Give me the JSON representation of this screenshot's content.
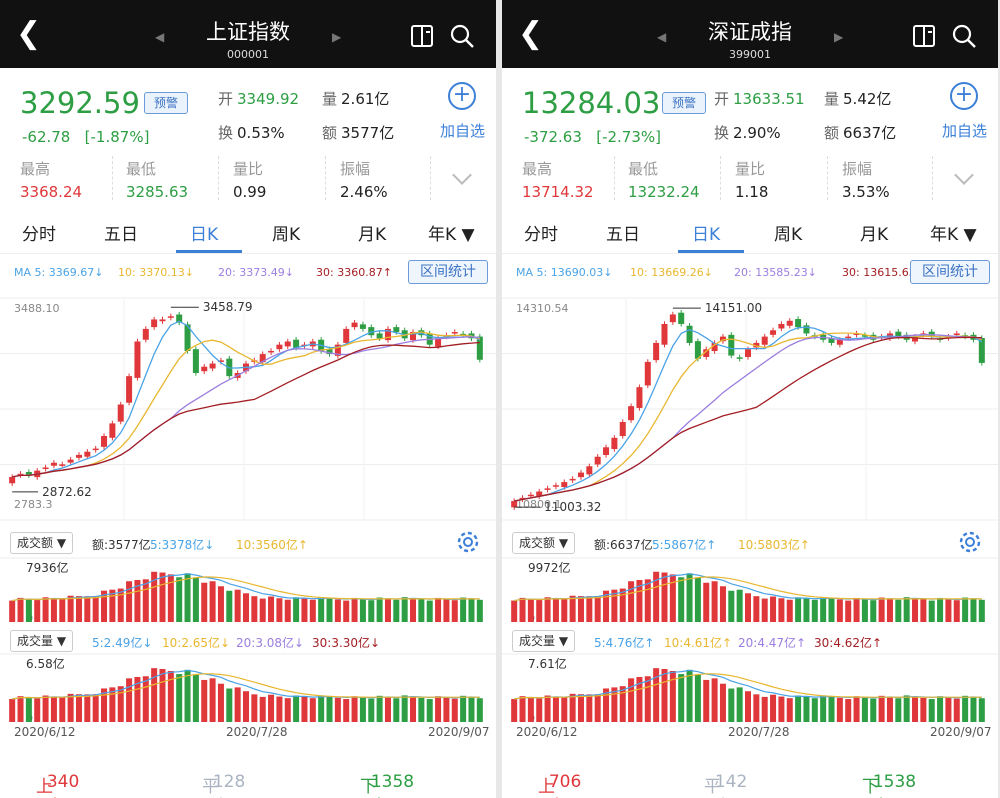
{
  "colors": {
    "up": "#e0373a",
    "down": "#2d9e43",
    "flat": "#aab4c2",
    "accent": "#3c80d8",
    "ma5": "#4aa3e6",
    "ma10": "#e8b730",
    "ma20": "#9b7ee0",
    "ma30": "#a31e23"
  },
  "panels": [
    {
      "header": {
        "title": "上证指数",
        "code": "000001",
        "back_icon": "back-chevron",
        "compare_icon": "layout-icon",
        "search_icon": "search-icon"
      },
      "quote": {
        "price": "3292.59",
        "alert_label": "预警",
        "change": "-62.78",
        "change_pct": "[-1.87%]",
        "open_label": "开",
        "open": "3349.92",
        "volume_label": "量",
        "volume": "2.61亿",
        "turnover_label": "换",
        "turnover": "0.53%",
        "amount_label": "额",
        "amount": "3577亿",
        "add_label": "加自选",
        "stats": [
          {
            "label": "最高",
            "value": "3368.24",
            "color": "up"
          },
          {
            "label": "最低",
            "value": "3285.63",
            "color": "down"
          },
          {
            "label": "量比",
            "value": "0.99",
            "color": "plain"
          },
          {
            "label": "振幅",
            "value": "2.46%",
            "color": "plain"
          }
        ]
      },
      "tabs": [
        "分时",
        "五日",
        "日K",
        "周K",
        "月K",
        "年K"
      ],
      "active_tab": 2,
      "ma_legend": [
        "MA 5: 3369.67↓",
        "10: 3370.13↓",
        "20: 3373.49↓",
        "30: 3360.87↑"
      ],
      "range_button": "区间统计",
      "price_axis": {
        "high_label": "3488.10",
        "low_label": "2783.3",
        "max_mark": "3458.79",
        "min_mark": "2872.62"
      },
      "amount_panel": {
        "dropdown": "成交额",
        "legend": [
          "额:3577亿",
          "5:3378亿↓",
          "10:3560亿↑"
        ],
        "max_label": "7936亿",
        "zero": "0"
      },
      "volume_panel": {
        "dropdown": "成交量",
        "legend": [
          "5:2.49亿↓",
          "10:2.65亿↓",
          "20:3.08亿↓",
          "30:3.30亿↓"
        ],
        "max_label": "6.58亿",
        "zero": "0"
      },
      "dates": [
        "2020/6/12",
        "2020/7/28",
        "2020/9/07"
      ],
      "footer": {
        "up_label": "上涨",
        "up": "340家",
        "flat_label": "平盘",
        "flat": "128家",
        "down_label": "下跌",
        "down": "1358家"
      }
    },
    {
      "header": {
        "title": "深证成指",
        "code": "399001",
        "back_icon": "back-chevron",
        "compare_icon": "layout-icon",
        "search_icon": "search-icon"
      },
      "quote": {
        "price": "13284.03",
        "alert_label": "预警",
        "change": "-372.63",
        "change_pct": "[-2.73%]",
        "open_label": "开",
        "open": "13633.51",
        "volume_label": "量",
        "volume": "5.42亿",
        "turnover_label": "换",
        "turnover": "2.90%",
        "amount_label": "额",
        "amount": "6637亿",
        "add_label": "加自选",
        "stats": [
          {
            "label": "最高",
            "value": "13714.32",
            "color": "up"
          },
          {
            "label": "最低",
            "value": "13232.24",
            "color": "down"
          },
          {
            "label": "量比",
            "value": "1.18",
            "color": "plain"
          },
          {
            "label": "振幅",
            "value": "3.53%",
            "color": "plain"
          }
        ]
      },
      "tabs": [
        "分时",
        "五日",
        "日K",
        "周K",
        "月K",
        "年K"
      ],
      "active_tab": 2,
      "ma_legend": [
        "MA 5: 13690.03↓",
        "10: 13669.26↓",
        "20: 13585.23↓",
        "30: 13615.63↑"
      ],
      "range_button": "区间统计",
      "price_axis": {
        "high_label": "14310.54",
        "low_label": "10800.1",
        "max_mark": "14151.00",
        "min_mark": "11003.32"
      },
      "amount_panel": {
        "dropdown": "成交额",
        "legend": [
          "额:6637亿",
          "5:5867亿↑",
          "10:5803亿↑"
        ],
        "max_label": "9972亿",
        "zero": "0"
      },
      "volume_panel": {
        "dropdown": "成交量",
        "legend": [
          "5:4.76亿↑",
          "10:4.61亿↑",
          "20:4.47亿↑",
          "30:4.62亿↑"
        ],
        "max_label": "7.61亿",
        "zero": "0"
      },
      "dates": [
        "2020/6/12",
        "2020/7/28",
        "2020/9/07"
      ],
      "footer": {
        "up_label": "上涨",
        "up": "706家",
        "flat_label": "平盘",
        "flat": "142家",
        "down_label": "下跌",
        "down": "1538家"
      }
    }
  ],
  "chart_data": [
    {
      "type": "candlestick",
      "title": "上证指数 日K",
      "x_range": [
        "2020/6/12",
        "2020/9/07"
      ],
      "closes": [
        2920,
        2930,
        2925,
        2940,
        2950,
        2965,
        2960,
        2975,
        2990,
        3000,
        3010,
        3050,
        3090,
        3150,
        3240,
        3350,
        3390,
        3420,
        3420,
        3430,
        3410,
        3320,
        3250,
        3270,
        3280,
        3290,
        3240,
        3250,
        3280,
        3290,
        3310,
        3320,
        3340,
        3350,
        3330,
        3340,
        3350,
        3320,
        3310,
        3340,
        3390,
        3410,
        3390,
        3370,
        3360,
        3390,
        3380,
        3360,
        3380,
        3370,
        3340,
        3360,
        3370,
        3380,
        3370,
        3360,
        3292
      ],
      "high": 3458.79,
      "low": 2872.62,
      "ylim": [
        2783.3,
        3488.1
      ],
      "ma": {
        "ma5": 3369.67,
        "ma10": 3370.13,
        "ma20": 3373.49,
        "ma30": 3360.87
      },
      "amount_max": "7936亿",
      "volume_max": "6.58亿"
    },
    {
      "type": "candlestick",
      "title": "深证成指 日K",
      "x_range": [
        "2020/6/12",
        "2020/9/07"
      ],
      "closes": [
        11100,
        11150,
        11200,
        11250,
        11300,
        11350,
        11400,
        11450,
        11550,
        11650,
        11800,
        11950,
        12100,
        12350,
        12600,
        12900,
        13300,
        13600,
        13900,
        14050,
        13900,
        13600,
        13350,
        13500,
        13600,
        13700,
        13400,
        13350,
        13500,
        13600,
        13700,
        13800,
        13900,
        13950,
        13850,
        13750,
        13700,
        13650,
        13600,
        13650,
        13700,
        13750,
        13700,
        13650,
        13700,
        13750,
        13700,
        13650,
        13700,
        13750,
        13700,
        13650,
        13700,
        13750,
        13700,
        13650,
        13284
      ],
      "high": 14151.0,
      "low": 11003.32,
      "ylim": [
        10800.1,
        14310.54
      ],
      "ma": {
        "ma5": 13690.03,
        "ma10": 13669.26,
        "ma20": 13585.23,
        "ma30": 13615.63
      },
      "amount_max": "9972亿",
      "volume_max": "7.61亿"
    }
  ]
}
